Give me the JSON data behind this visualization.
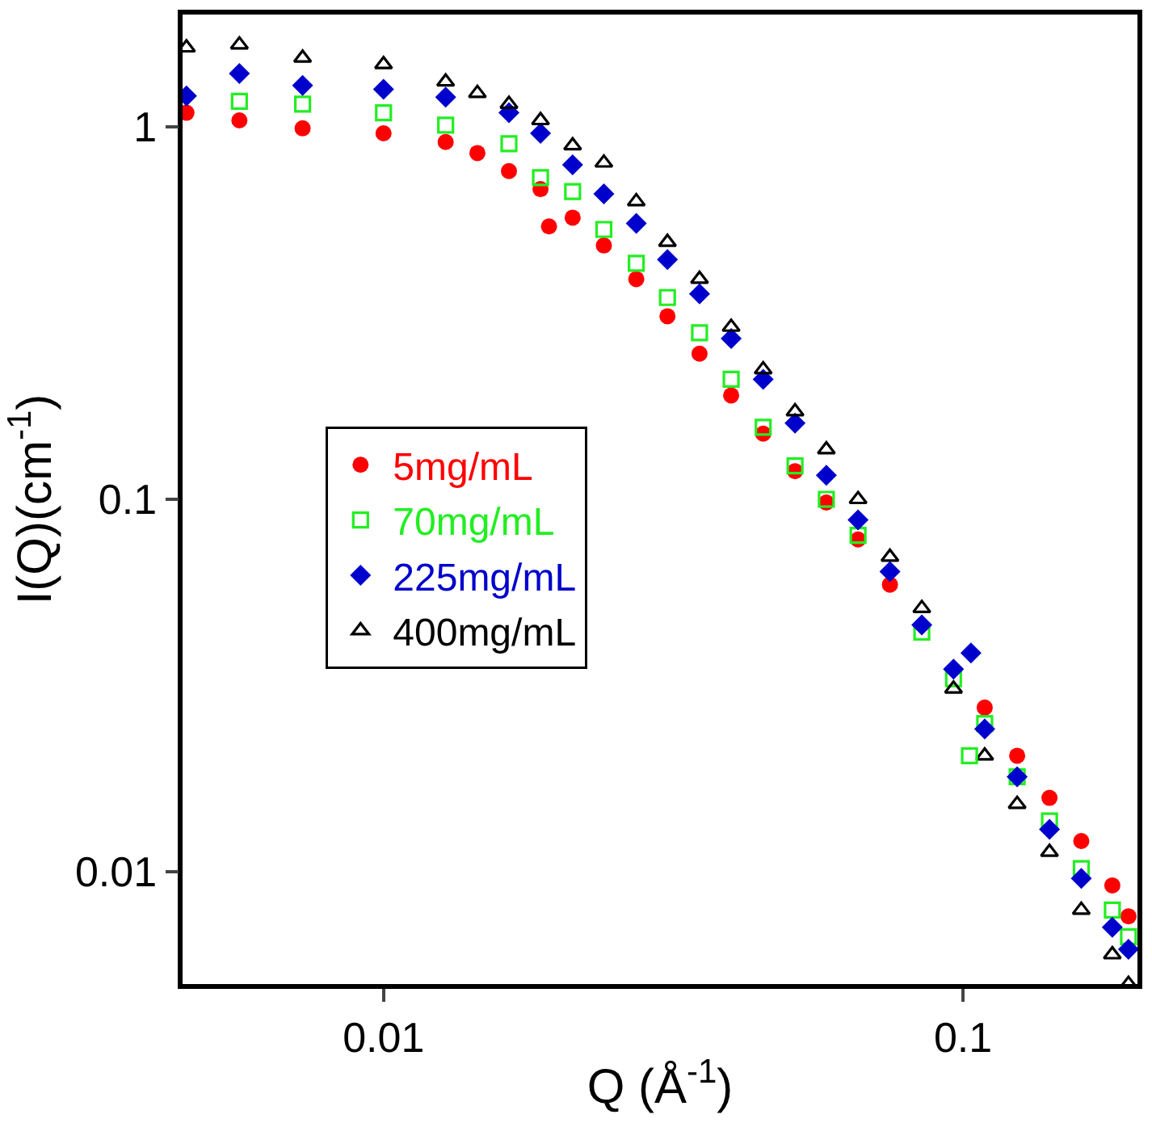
{
  "chart_data": {
    "type": "scatter",
    "xlabel": "Q (Å$^{-1}$)",
    "ylabel": "I(Q)(cm$^{-1}$)",
    "log": "xy",
    "xlim": [
      0.0045,
      0.2
    ],
    "ylim": [
      0.005,
      2
    ],
    "xticks": [
      0.01,
      0.1
    ],
    "yticks": [
      0.01,
      0.1,
      1
    ],
    "grid": false,
    "legend": "left",
    "x": [
      0.00457,
      0.00564,
      0.00725,
      0.01,
      0.0128,
      0.01452,
      0.01646,
      0.01866,
      0.0212,
      0.024,
      0.0273,
      0.0309,
      0.0351,
      0.0398,
      0.0452,
      0.0513,
      0.0581,
      0.0659,
      0.0748,
      0.0849,
      0.0963,
      0.109,
      0.124,
      0.141,
      0.16,
      0.181,
      0.193
    ],
    "series": [
      {
        "name": "5mg/mL",
        "color": "#ff0000",
        "marker": "circle",
        "values": [
          1.09,
          1.04,
          0.99,
          0.96,
          0.91,
          0.85,
          0.76,
          0.68,
          0.57,
          0.48,
          0.39,
          0.31,
          0.246,
          0.19,
          0.15,
          0.119,
          0.098,
          0.078,
          0.059,
          null,
          null,
          0.0276,
          0.0205,
          0.0158,
          0.0121,
          0.0092,
          0.0076
        ]
      },
      {
        "name": "70mg/mL",
        "color": "#22ee22",
        "marker": "square-open",
        "values": [
          null,
          1.17,
          1.15,
          1.09,
          1.01,
          null,
          0.9,
          0.73,
          0.67,
          0.53,
          0.43,
          0.348,
          0.28,
          0.21,
          0.156,
          0.123,
          0.1,
          0.08,
          null,
          0.044,
          0.033,
          0.025,
          0.018,
          0.0137,
          0.0102,
          0.0079,
          0.0067
        ]
      },
      {
        "name": "225mg/mL",
        "color": "#0000cc",
        "marker": "diamond",
        "values": [
          1.21,
          1.39,
          1.29,
          1.26,
          1.2,
          null,
          1.09,
          0.96,
          0.79,
          0.66,
          0.55,
          0.44,
          0.356,
          0.27,
          0.21,
          0.16,
          0.116,
          0.088,
          0.064,
          0.046,
          0.035,
          0.0242,
          0.018,
          0.013,
          0.0096,
          0.0071,
          0.0062
        ]
      },
      {
        "name": "400mg/mL",
        "color": "#000000",
        "marker": "triangle-open",
        "values": [
          1.63,
          1.66,
          1.53,
          1.47,
          1.32,
          1.23,
          1.15,
          1.04,
          0.89,
          0.8,
          0.63,
          0.49,
          0.39,
          0.29,
          0.223,
          0.172,
          0.136,
          0.1,
          0.07,
          0.051,
          0.031,
          0.0205,
          0.0152,
          0.0113,
          0.0079,
          0.006,
          0.005
        ]
      },
      {
        "name": null,
        "color": "#ff0000",
        "marker": "circle",
        "x": [
          0.0193
        ],
        "values": [
          0.54
        ]
      },
      {
        "name": null,
        "color": "#22ee22",
        "marker": "square-open",
        "x": [
          0.1026
        ],
        "values": [
          0.0205
        ]
      },
      {
        "name": null,
        "color": "#0000cc",
        "marker": "diamond",
        "x": [
          0.1032
        ],
        "values": [
          0.0387
        ]
      }
    ]
  }
}
